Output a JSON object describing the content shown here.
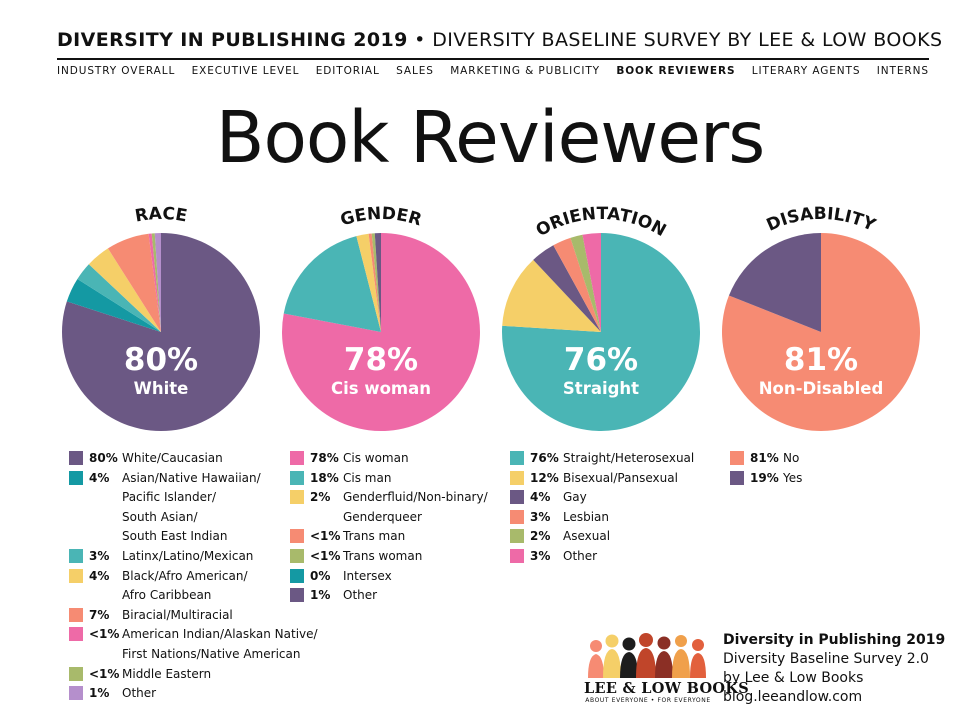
{
  "header": {
    "title_bold": "DIVERSITY IN PUBLISHING 2019",
    "separator": " • ",
    "title_rest": "DIVERSITY BASELINE SURVEY BY LEE & LOW BOOKS",
    "nav": [
      {
        "label": "INDUSTRY OVERALL",
        "active": false
      },
      {
        "label": "EXECUTIVE LEVEL",
        "active": false
      },
      {
        "label": "EDITORIAL",
        "active": false
      },
      {
        "label": "SALES",
        "active": false
      },
      {
        "label": "MARKETING & PUBLICITY",
        "active": false
      },
      {
        "label": "BOOK REVIEWERS",
        "active": true
      },
      {
        "label": "LITERARY AGENTS",
        "active": false
      },
      {
        "label": "INTERNS",
        "active": false
      }
    ]
  },
  "page_title": "Book Reviewers",
  "chart_data": [
    {
      "type": "pie",
      "title": "RACE",
      "center_value": "80%",
      "center_label": "White",
      "slices": [
        {
          "pct": "80%",
          "value": 80,
          "label": "White/Caucasian",
          "color": "#6b5884"
        },
        {
          "pct": "4%",
          "value": 4,
          "label": "Asian/Native Hawaiian/ Pacific Islander/ South Asian/ South East Indian",
          "color": "#1499a3"
        },
        {
          "pct": "3%",
          "value": 3,
          "label": "Latinx/Latino/Mexican",
          "color": "#4ab5b5"
        },
        {
          "pct": "4%",
          "value": 4,
          "label": "Black/Afro American/ Afro Caribbean",
          "color": "#f5cf68"
        },
        {
          "pct": "7%",
          "value": 7,
          "label": "Biracial/Multiracial",
          "color": "#f68b73"
        },
        {
          "pct": "<1%",
          "value": 0.5,
          "label": "American Indian/Alaskan Native/ First Nations/Native American",
          "color": "#ee6aa7"
        },
        {
          "pct": "<1%",
          "value": 0.5,
          "label": "Middle Eastern",
          "color": "#a8ba6b"
        },
        {
          "pct": "1%",
          "value": 1,
          "label": "Other",
          "color": "#b58fcc"
        }
      ]
    },
    {
      "type": "pie",
      "title": "GENDER",
      "center_value": "78%",
      "center_label": "Cis woman",
      "slices": [
        {
          "pct": "78%",
          "value": 78,
          "label": "Cis woman",
          "color": "#ee6aa7"
        },
        {
          "pct": "18%",
          "value": 18,
          "label": "Cis man",
          "color": "#4ab5b5"
        },
        {
          "pct": "2%",
          "value": 2,
          "label": "Genderfluid/Non-binary/ Genderqueer",
          "color": "#f5cf68"
        },
        {
          "pct": "<1%",
          "value": 0.5,
          "label": "Trans man",
          "color": "#f68b73"
        },
        {
          "pct": "<1%",
          "value": 0.5,
          "label": "Trans woman",
          "color": "#a8ba6b"
        },
        {
          "pct": "0%",
          "value": 0,
          "label": "Intersex",
          "color": "#1499a3"
        },
        {
          "pct": "1%",
          "value": 1,
          "label": "Other",
          "color": "#6b5884"
        }
      ]
    },
    {
      "type": "pie",
      "title": "ORIENTATION",
      "center_value": "76%",
      "center_label": "Straight",
      "slices": [
        {
          "pct": "76%",
          "value": 76,
          "label": "Straight/Heterosexual",
          "color": "#4ab5b5"
        },
        {
          "pct": "12%",
          "value": 12,
          "label": "Bisexual/Pansexual",
          "color": "#f5cf68"
        },
        {
          "pct": "4%",
          "value": 4,
          "label": "Gay",
          "color": "#6b5884"
        },
        {
          "pct": "3%",
          "value": 3,
          "label": "Lesbian",
          "color": "#f68b73"
        },
        {
          "pct": "2%",
          "value": 2,
          "label": "Asexual",
          "color": "#a8ba6b"
        },
        {
          "pct": "3%",
          "value": 3,
          "label": "Other",
          "color": "#ee6aa7"
        }
      ]
    },
    {
      "type": "pie",
      "title": "DISABILITY",
      "center_value": "81%",
      "center_label": "Non-Disabled",
      "slices": [
        {
          "pct": "81%",
          "value": 81,
          "label": "No",
          "color": "#f68b73"
        },
        {
          "pct": "19%",
          "value": 19,
          "label": "Yes",
          "color": "#6b5884"
        }
      ]
    }
  ],
  "footer": {
    "logo_name": "LEE & LOW BOOKS",
    "logo_tagline": "ABOUT EVERYONE • FOR EVERYONE",
    "line1": "Diversity in Publishing 2019",
    "line2": "Diversity Baseline Survey 2.0",
    "line3": "by Lee & Low Books",
    "line4": "blog.leeandlow.com"
  }
}
